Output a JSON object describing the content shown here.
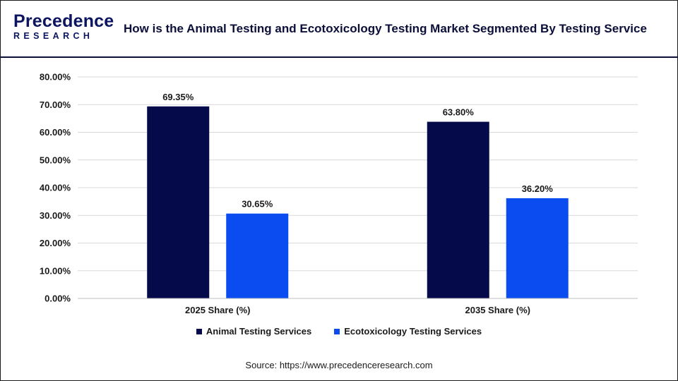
{
  "header": {
    "logo_top": "Precedence",
    "logo_bottom": "RESEARCH",
    "title": "How is the Animal Testing and Ecotoxicology Testing Market Segmented By Testing Service"
  },
  "source": "Source: https://www.precedenceresearch.com",
  "colors": {
    "animal": "#050a4a",
    "ecotox": "#0a4cf0",
    "grid": "#d9d9d9",
    "header_border": "#0b0f3a"
  },
  "chart_data": {
    "type": "bar",
    "title": "",
    "xlabel": "",
    "ylabel": "",
    "categories": [
      "2025 Share (%)",
      "2035 Share (%)"
    ],
    "series": [
      {
        "name": "Animal Testing Services",
        "values": [
          69.35,
          63.8
        ],
        "labels": [
          "69.35%",
          "63.80%"
        ]
      },
      {
        "name": "Ecotoxicology Testing Services",
        "values": [
          30.65,
          36.2
        ],
        "labels": [
          "30.65%",
          "36.20%"
        ]
      }
    ],
    "ylim": [
      0,
      80
    ],
    "yticks": [
      "0.00%",
      "10.00%",
      "20.00%",
      "30.00%",
      "40.00%",
      "50.00%",
      "60.00%",
      "70.00%",
      "80.00%"
    ],
    "grid": true,
    "legend_position": "bottom"
  }
}
